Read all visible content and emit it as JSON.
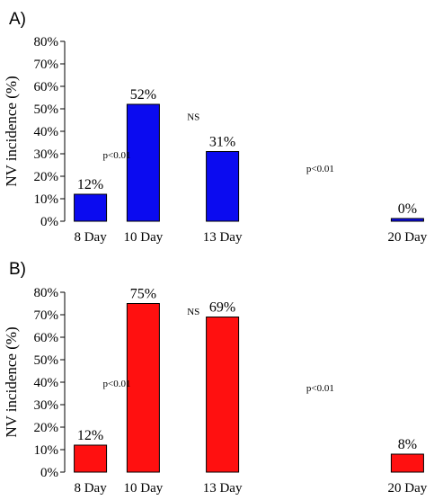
{
  "chart_data": [
    {
      "panel_label": "A)",
      "type": "bar",
      "categories": [
        "8 Day",
        "10 Day",
        "13 Day",
        "20 Day"
      ],
      "x": [
        8,
        10,
        13,
        20
      ],
      "values": [
        12,
        52,
        31,
        0
      ],
      "data_labels": [
        "12%",
        "52%",
        "31%",
        "0%"
      ],
      "ylabel": "NV incidence (%)",
      "ylim": [
        0,
        80
      ],
      "yticks": [
        "0%",
        "10%",
        "20%",
        "30%",
        "40%",
        "50%",
        "60%",
        "70%",
        "80%"
      ],
      "color": "#0b0bf0",
      "grid": false,
      "annotations": [
        {
          "text": "p<0.01",
          "x": 9,
          "y": 28
        },
        {
          "text": "NS",
          "x": 11.9,
          "y": 45
        },
        {
          "text": "p<0.01",
          "x": 16.7,
          "y": 22
        }
      ]
    },
    {
      "panel_label": "B)",
      "type": "bar",
      "categories": [
        "8 Day",
        "10 Day",
        "13 Day",
        "20 Day"
      ],
      "x": [
        8,
        10,
        13,
        20
      ],
      "values": [
        12,
        75,
        69,
        8
      ],
      "data_labels": [
        "12%",
        "75%",
        "69%",
        "8%"
      ],
      "ylabel": "NV incidence (%)",
      "ylim": [
        0,
        80
      ],
      "yticks": [
        "0%",
        "10%",
        "20%",
        "30%",
        "40%",
        "50%",
        "60%",
        "70%",
        "80%"
      ],
      "color": "#ff1010",
      "grid": false,
      "annotations": [
        {
          "text": "p<0.01",
          "x": 9,
          "y": 38
        },
        {
          "text": "NS",
          "x": 11.9,
          "y": 70
        },
        {
          "text": "p<0.01",
          "x": 16.7,
          "y": 36
        }
      ]
    }
  ]
}
